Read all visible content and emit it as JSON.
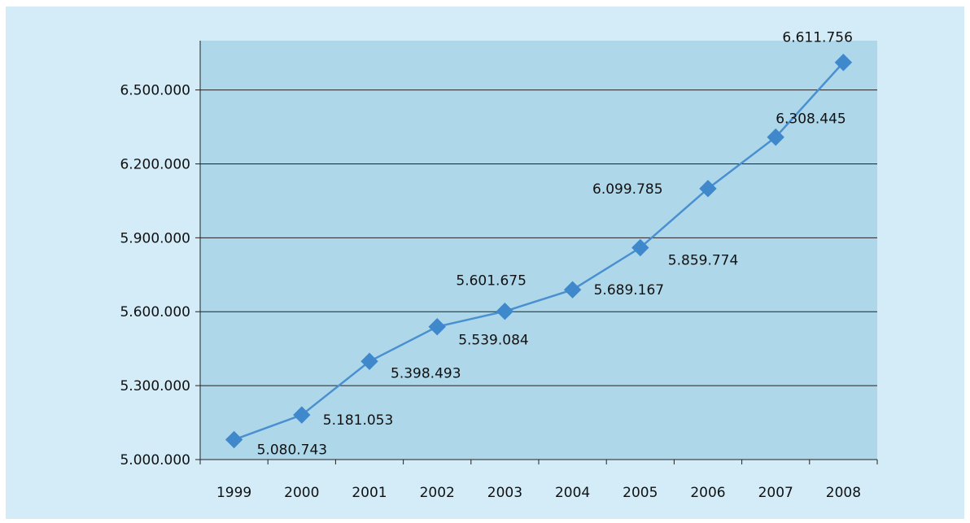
{
  "colors": {
    "outer_background": "#d3ecf8",
    "plot_background": "#aed8ea",
    "gridline": "#222222",
    "series_line": "#4a90d0",
    "series_marker": "#3f88cc"
  },
  "chart_data": {
    "type": "line",
    "title": "",
    "xlabel": "",
    "ylabel": "",
    "categories": [
      "1999",
      "2000",
      "2001",
      "2002",
      "2003",
      "2004",
      "2005",
      "2006",
      "2007",
      "2008"
    ],
    "series": [
      {
        "values": [
          5080743,
          5181053,
          5398493,
          5539084,
          5601675,
          5689167,
          5859774,
          6099785,
          6308445,
          6611756
        ],
        "data_labels": [
          "5.080.743",
          "5.181.053",
          "5.398.493",
          "5.539.084",
          "5.601.675",
          "5.689.167",
          "5.859.774",
          "6.099.785",
          "6.308.445",
          "6.611.756"
        ],
        "marker": "diamond"
      }
    ],
    "ylim": [
      5000000,
      6700000
    ],
    "y_ticks": [
      5000000,
      5300000,
      5600000,
      5900000,
      6200000,
      6500000
    ],
    "y_tick_labels": [
      "5.000.000",
      "5.300.000",
      "5.600.000",
      "5.900.000",
      "6.200.000",
      "6.500.000"
    ],
    "grid": true,
    "legend": "none"
  }
}
